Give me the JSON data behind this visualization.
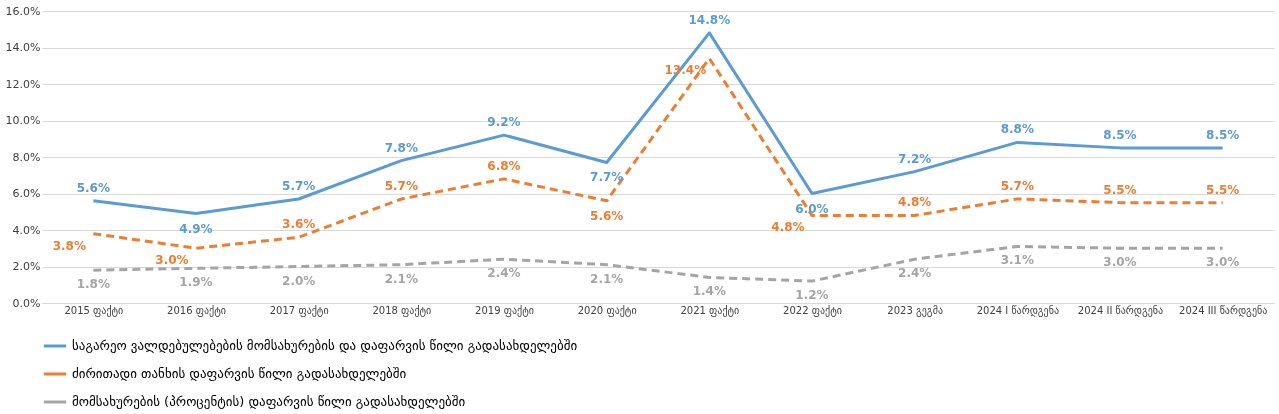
{
  "chart_data": {
    "type": "line",
    "categories": [
      "2015 ფაქტი",
      "2016 ფაქტი",
      "2017 ფაქტი",
      "2018 ფაქტი",
      "2019 ფაქტი",
      "2020 ფაქტი",
      "2021 ფაქტი",
      "2022 ფაქტი",
      "2023 გეგმა",
      "2024 I წარდგენა",
      "2024 II წარდგენა",
      "2024 III წარდგენა"
    ],
    "series": [
      {
        "name": "საგარეო ვალდებულებების მომსახურების და დაფარვის წილი გადასახდელებში",
        "color": "#5b9bd5",
        "line_style": "solid",
        "values": [
          5.6,
          4.9,
          5.7,
          7.8,
          9.2,
          7.7,
          14.8,
          6.0,
          7.2,
          8.8,
          8.5,
          8.5
        ],
        "value_labels": [
          "5.6%",
          "4.9%",
          "5.7%",
          "7.8%",
          "9.2%",
          "7.7%",
          "14.8%",
          "6.0%",
          "7.2%",
          "8.8%",
          "8.5%",
          "8.5%"
        ]
      },
      {
        "name": "ძირითადი თანხის დაფარვის წილი გადასახდელებში",
        "color": "#ed7d31",
        "line_style": "dashed",
        "values": [
          3.8,
          3.0,
          3.6,
          5.7,
          6.8,
          5.6,
          13.4,
          4.8,
          4.8,
          5.7,
          5.5,
          5.5
        ],
        "value_labels": [
          "3.8%",
          "3.0%",
          "3.6%",
          "5.7%",
          "6.8%",
          "5.6%",
          "13.4%",
          "4.8%",
          "4.8%",
          "5.7%",
          "5.5%",
          "5.5%"
        ]
      },
      {
        "name": "მომსახურების (პროცენტის) დაფარვის წილი გადასახდელებში",
        "color": "#a5a5a5",
        "line_style": "dashed",
        "values": [
          1.8,
          1.9,
          2.0,
          2.1,
          2.4,
          2.1,
          1.4,
          1.2,
          2.4,
          3.1,
          3.0,
          3.0
        ],
        "value_labels": [
          "1.8%",
          "1.9%",
          "2.0%",
          "2.1%",
          "2.4%",
          "2.1%",
          "1.4%",
          "1.2%",
          "2.4%",
          "3.1%",
          "3.0%",
          "3.0%"
        ]
      }
    ],
    "ylim": [
      0,
      16
    ],
    "yticks": [
      {
        "value": 0,
        "label": "0.0%"
      },
      {
        "value": 2,
        "label": "2.0%"
      },
      {
        "value": 4,
        "label": "4.0%"
      },
      {
        "value": 6,
        "label": "6.0%"
      },
      {
        "value": 8,
        "label": "8.0%"
      },
      {
        "value": 10,
        "label": "10.0%"
      },
      {
        "value": 12,
        "label": "12.0%"
      },
      {
        "value": 14,
        "label": "14.0%"
      },
      {
        "value": 16,
        "label": "16.0%"
      }
    ],
    "grid": "y",
    "legend": "bottom",
    "marker": "none"
  }
}
